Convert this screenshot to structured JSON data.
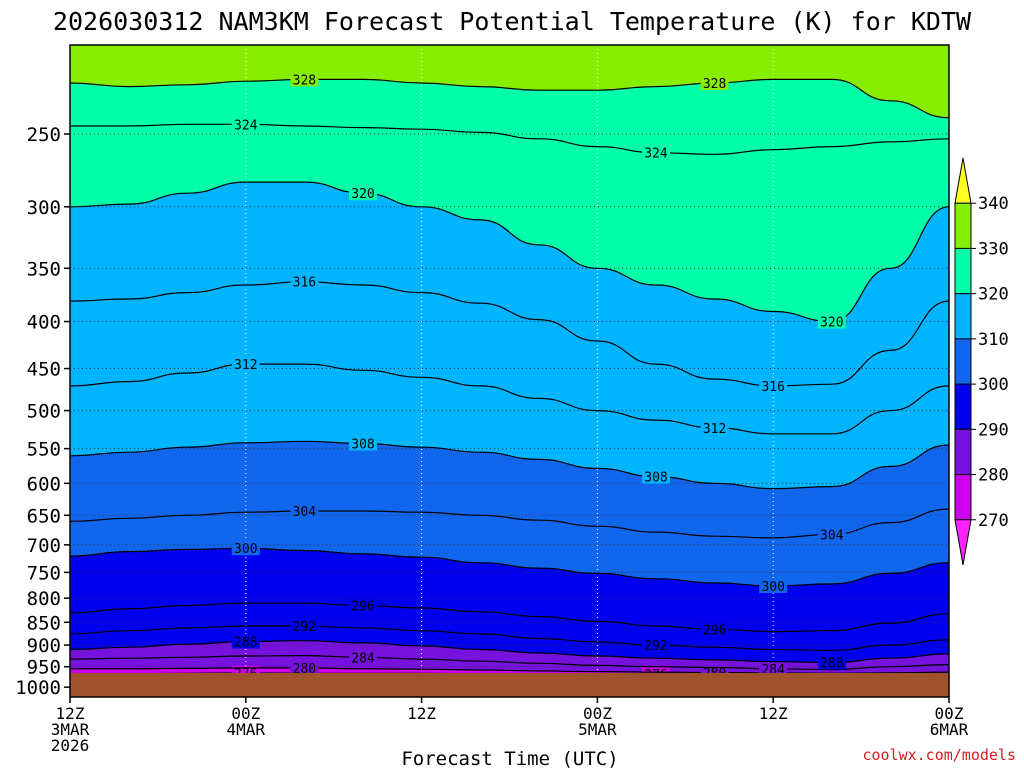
{
  "title": "2026030312 NAM3KM Forecast Potential Temperature (K) for KDTW",
  "attribution": "coolwx.com/models",
  "chart_data": {
    "type": "filled-contour",
    "title": "2026030312 NAM3KM Forecast Potential Temperature (K) for KDTW",
    "xlabel": "Forecast Time (UTC)",
    "ylabel": "",
    "x_range_hours": [
      0,
      60
    ],
    "x_ticks": [
      {
        "hour": 0,
        "lines": [
          "12Z",
          "3MAR",
          "2026"
        ]
      },
      {
        "hour": 12,
        "lines": [
          "00Z",
          "4MAR"
        ]
      },
      {
        "hour": 24,
        "lines": [
          "12Z"
        ]
      },
      {
        "hour": 36,
        "lines": [
          "00Z",
          "5MAR"
        ]
      },
      {
        "hour": 48,
        "lines": [
          "12Z"
        ]
      },
      {
        "hour": 60,
        "lines": [
          "00Z",
          "6MAR"
        ]
      }
    ],
    "y_scale": "log",
    "y_range_hpa": [
      1025,
      200
    ],
    "y_ticks": [
      250,
      300,
      350,
      400,
      450,
      500,
      550,
      600,
      650,
      700,
      750,
      800,
      850,
      900,
      950,
      1000
    ],
    "grid": true,
    "colorbar": {
      "levels": [
        270,
        280,
        290,
        300,
        310,
        320,
        330,
        340
      ],
      "colors": [
        "#ff22ff",
        "#cc00ee",
        "#7711dd",
        "#0000ee",
        "#1166ee",
        "#00b4ff",
        "#00ffa8",
        "#88ee00",
        "#ffff22"
      ],
      "placement": "right"
    },
    "ground_color": "#a0522d",
    "contour_interval": 4,
    "isotherms": [
      {
        "theta": 276,
        "x": [
          0,
          4,
          8,
          12,
          16,
          20,
          24,
          28,
          32,
          36,
          40,
          44,
          48,
          52,
          56,
          60
        ],
        "p": [
          967,
          967,
          966,
          965,
          966,
          966,
          966,
          967,
          967,
          967,
          967,
          967,
          968,
          968,
          968,
          968
        ]
      },
      {
        "theta": 280,
        "x": [
          0,
          4,
          8,
          12,
          16,
          20,
          24,
          28,
          32,
          36,
          40,
          44,
          48,
          52,
          56,
          60
        ],
        "p": [
          955,
          955,
          954,
          953,
          953,
          955,
          956,
          958,
          960,
          962,
          963,
          964,
          965,
          966,
          965,
          963
        ]
      },
      {
        "theta": 284,
        "x": [
          0,
          4,
          8,
          12,
          16,
          20,
          24,
          28,
          32,
          36,
          40,
          44,
          48,
          52,
          56,
          60
        ],
        "p": [
          932,
          930,
          928,
          925,
          924,
          928,
          932,
          937,
          942,
          947,
          950,
          952,
          955,
          957,
          950,
          945
        ]
      },
      {
        "theta": 288,
        "x": [
          0,
          4,
          8,
          12,
          16,
          20,
          24,
          28,
          32,
          36,
          40,
          44,
          48,
          52,
          56,
          60
        ],
        "p": [
          910,
          905,
          898,
          892,
          890,
          895,
          902,
          910,
          918,
          925,
          930,
          934,
          938,
          940,
          930,
          920
        ]
      },
      {
        "theta": 292,
        "x": [
          0,
          4,
          8,
          12,
          16,
          20,
          24,
          28,
          32,
          36,
          40,
          44,
          48,
          52,
          56,
          60
        ],
        "p": [
          875,
          868,
          862,
          858,
          858,
          862,
          868,
          875,
          885,
          893,
          900,
          905,
          910,
          912,
          900,
          888
        ]
      },
      {
        "theta": 296,
        "x": [
          0,
          4,
          8,
          12,
          16,
          20,
          24,
          28,
          32,
          36,
          40,
          44,
          48,
          52,
          56,
          60
        ],
        "p": [
          830,
          822,
          815,
          810,
          810,
          815,
          820,
          828,
          838,
          848,
          858,
          865,
          870,
          868,
          852,
          832
        ]
      },
      {
        "theta": 300,
        "x": [
          0,
          4,
          8,
          12,
          16,
          20,
          24,
          28,
          32,
          36,
          40,
          44,
          48,
          52,
          56,
          60
        ],
        "p": [
          720,
          712,
          708,
          706,
          710,
          716,
          722,
          732,
          742,
          752,
          762,
          770,
          776,
          772,
          752,
          732
        ]
      },
      {
        "theta": 304,
        "x": [
          0,
          4,
          8,
          12,
          16,
          20,
          24,
          28,
          32,
          36,
          40,
          44,
          48,
          52,
          56,
          60
        ],
        "p": [
          660,
          655,
          650,
          645,
          643,
          643,
          645,
          650,
          658,
          668,
          678,
          685,
          688,
          682,
          662,
          640
        ]
      },
      {
        "theta": 308,
        "x": [
          0,
          4,
          8,
          12,
          16,
          20,
          24,
          28,
          32,
          36,
          40,
          44,
          48,
          52,
          56,
          60
        ],
        "p": [
          560,
          555,
          548,
          542,
          540,
          543,
          548,
          555,
          565,
          578,
          590,
          600,
          608,
          605,
          575,
          545
        ]
      },
      {
        "theta": 312,
        "x": [
          0,
          4,
          8,
          12,
          16,
          20,
          24,
          28,
          32,
          36,
          40,
          44,
          48,
          52,
          56,
          60
        ],
        "p": [
          470,
          465,
          455,
          445,
          445,
          452,
          460,
          470,
          485,
          500,
          512,
          522,
          530,
          530,
          500,
          470
        ]
      },
      {
        "theta": 316,
        "x": [
          0,
          4,
          8,
          12,
          16,
          20,
          24,
          28,
          32,
          36,
          40,
          44,
          48,
          52,
          56,
          60
        ],
        "p": [
          380,
          378,
          372,
          365,
          362,
          365,
          372,
          382,
          398,
          420,
          445,
          462,
          470,
          468,
          430,
          380
        ]
      },
      {
        "theta": 320,
        "x": [
          0,
          4,
          8,
          12,
          16,
          20,
          24,
          28,
          32,
          36,
          40,
          44,
          48,
          52,
          56,
          60
        ],
        "p": [
          300,
          298,
          290,
          282,
          282,
          290,
          300,
          310,
          330,
          350,
          365,
          378,
          390,
          400,
          350,
          300
        ]
      },
      {
        "theta": 324,
        "x": [
          0,
          4,
          8,
          12,
          16,
          20,
          24,
          28,
          32,
          36,
          40,
          44,
          48,
          52,
          56,
          60
        ],
        "p": [
          245,
          245,
          244,
          244,
          245,
          246,
          247,
          249,
          253,
          258,
          262,
          263,
          260,
          258,
          255,
          253
        ]
      },
      {
        "theta": 328,
        "x": [
          0,
          4,
          8,
          12,
          16,
          20,
          24,
          28,
          32,
          36,
          40,
          44,
          48,
          52,
          56,
          60
        ],
        "p": [
          220,
          222,
          221,
          219,
          218,
          218,
          220,
          222,
          224,
          224,
          222,
          220,
          218,
          218,
          230,
          240
        ]
      }
    ]
  }
}
